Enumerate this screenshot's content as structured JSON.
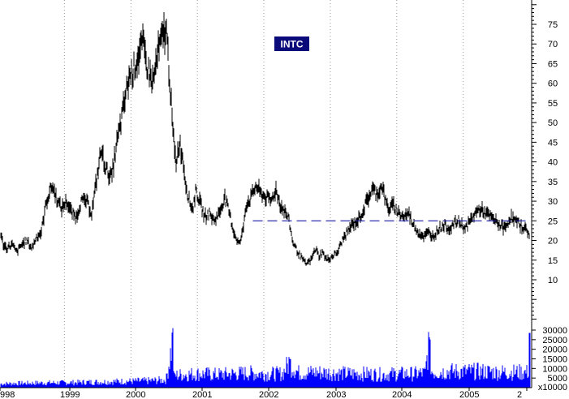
{
  "chart_data": {
    "type": "line",
    "title": "INTC",
    "title_bg_color": "#0a0a7a",
    "xlabel": "",
    "ylabel": "",
    "x_tick_labels": [
      "998",
      "1999",
      "2000",
      "2001",
      "2002",
      "2003",
      "2004",
      "2005",
      "2"
    ],
    "y_tick_labels": [
      "10",
      "15",
      "20",
      "25",
      "30",
      "35",
      "40",
      "45",
      "50",
      "55",
      "60",
      "65",
      "70",
      "75"
    ],
    "ylim": [
      0,
      80
    ],
    "xlim": [
      1998.0,
      2006.0
    ],
    "grid": "vertical-dotted",
    "price_color": "#000000",
    "volume_color": "#0000ff",
    "reference_line": {
      "value": 25,
      "x_start": 2002.0,
      "x_end": 2006.0,
      "style": "dashed",
      "color": "#1a1aaa"
    },
    "series": [
      {
        "x": [
          1998.0,
          1998.05,
          1998.1,
          1998.18,
          1998.25,
          1998.33,
          1998.4,
          1998.48,
          1998.55,
          1998.62,
          1998.7,
          1998.78,
          1998.85,
          1998.92,
          1999.0,
          1999.08,
          1999.15,
          1999.22,
          1999.3,
          1999.38,
          1999.45,
          1999.52,
          1999.6,
          1999.68,
          1999.75,
          1999.82,
          1999.9,
          1999.95,
          2000.0,
          2000.08,
          2000.15,
          2000.22,
          2000.3,
          2000.38,
          2000.45,
          2000.5,
          2000.55,
          2000.6,
          2000.63,
          2000.65,
          2000.7,
          2000.75,
          2000.8,
          2000.85,
          2000.9,
          2000.95,
          2001.0,
          2001.08,
          2001.15,
          2001.22,
          2001.3,
          2001.38,
          2001.45,
          2001.52,
          2001.6,
          2001.65,
          2001.7,
          2001.78,
          2001.85,
          2001.92,
          2002.0,
          2002.08,
          2002.15,
          2002.22,
          2002.3,
          2002.35,
          2002.4,
          2002.45,
          2002.52,
          2002.6,
          2002.68,
          2002.75,
          2002.8,
          2002.85,
          2002.92,
          2003.0,
          2003.08,
          2003.15,
          2003.22,
          2003.3,
          2003.38,
          2003.45,
          2003.52,
          2003.6,
          2003.68,
          2003.75,
          2003.8,
          2003.85,
          2003.92,
          2004.0,
          2004.08,
          2004.15,
          2004.22,
          2004.3,
          2004.38,
          2004.45,
          2004.52,
          2004.6,
          2004.68,
          2004.75,
          2004.82,
          2004.9,
          2005.0,
          2005.08,
          2005.15,
          2005.22,
          2005.3,
          2005.38,
          2005.45,
          2005.52,
          2005.6,
          2005.68,
          2005.75,
          2005.82,
          2005.9,
          2005.95,
          2006.0
        ],
        "values": [
          22,
          19,
          18,
          19,
          17,
          19,
          20,
          18,
          21,
          22,
          30,
          34,
          31,
          28,
          30,
          27,
          26,
          30,
          30,
          27,
          35,
          43,
          38,
          36,
          44,
          50,
          58,
          62,
          63,
          67,
          70,
          64,
          60,
          68,
          72,
          74,
          62,
          48,
          42,
          40,
          45,
          41,
          34,
          30,
          28,
          33,
          30,
          26,
          27,
          25,
          27,
          31,
          27,
          22,
          19,
          22,
          29,
          31,
          34,
          32,
          31,
          30,
          33,
          29,
          27,
          25,
          20,
          18,
          16,
          14,
          15,
          18,
          16,
          17,
          15,
          16,
          17,
          20,
          22,
          24,
          25,
          27,
          30,
          33,
          32,
          34,
          30,
          28,
          29,
          27,
          26,
          27,
          24,
          22,
          21,
          22,
          21,
          23,
          24,
          23,
          24,
          25,
          23,
          25,
          27,
          28,
          27,
          26,
          25,
          24,
          23,
          26,
          25,
          24,
          23,
          22,
          21
        ]
      }
    ],
    "volume": {
      "y_tick_labels": [
        "5000",
        "10000",
        "15000",
        "20000",
        "25000",
        "30000"
      ],
      "units_label": "x10000",
      "ylim": [
        0,
        34000
      ],
      "x": [
        1998.0,
        1998.25,
        1998.5,
        1998.75,
        1999.0,
        1999.25,
        1999.5,
        1999.75,
        2000.0,
        2000.25,
        2000.5,
        2000.6,
        2000.62,
        2000.64,
        2000.75,
        2001.0,
        2001.25,
        2001.5,
        2001.75,
        2002.0,
        2002.25,
        2002.35,
        2002.5,
        2002.75,
        2003.0,
        2003.25,
        2003.5,
        2003.75,
        2004.0,
        2004.25,
        2004.4,
        2004.45,
        2004.5,
        2004.75,
        2005.0,
        2005.25,
        2005.5,
        2005.75,
        2005.95,
        2005.97,
        2006.0
      ],
      "values": [
        2500,
        2800,
        3000,
        3200,
        3200,
        3500,
        3700,
        4000,
        4200,
        4500,
        5000,
        31000,
        6000,
        8000,
        8500,
        9000,
        8500,
        9000,
        9500,
        9000,
        9000,
        16000,
        9500,
        10000,
        9500,
        9000,
        9000,
        8500,
        9000,
        9000,
        9500,
        29000,
        10000,
        10500,
        10500,
        10500,
        10000,
        10000,
        10000,
        28500,
        9000
      ]
    }
  }
}
